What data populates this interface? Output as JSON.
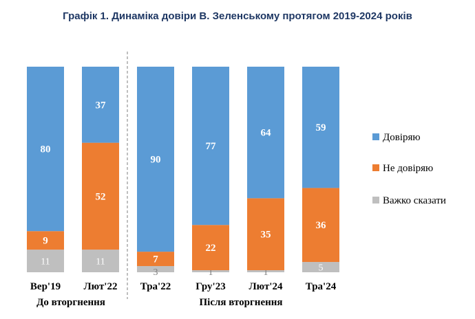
{
  "chart_data": {
    "type": "bar",
    "stacked": true,
    "title": "Графік 1. Динаміка довіри В. Зеленському протягом 2019-2024 років",
    "categories": [
      "Вер'19",
      "Лют'22",
      "Тра'22",
      "Гру'23",
      "Лют'24",
      "Тра'24"
    ],
    "series": [
      {
        "name": "Важко сказати",
        "color": "#bfbfbf",
        "values": [
          11,
          11,
          3,
          1,
          1,
          5
        ]
      },
      {
        "name": "Не довіряю",
        "color": "#ed7d31",
        "values": [
          9,
          52,
          7,
          22,
          35,
          36
        ]
      },
      {
        "name": "Довіряю",
        "color": "#5b9bd5",
        "values": [
          80,
          37,
          90,
          77,
          64,
          59
        ]
      }
    ],
    "legend_order": [
      "Довіряю",
      "Не довіряю",
      "Важко сказати"
    ],
    "groups": [
      {
        "label": "До вторгнення",
        "categories": [
          "Вер'19",
          "Лют'22"
        ]
      },
      {
        "label": "Після вторгнення",
        "categories": [
          "Тра'22",
          "Гру'23",
          "Лют'24",
          "Тра'24"
        ]
      }
    ],
    "ylim": [
      0,
      100
    ],
    "legend_position": "right"
  }
}
